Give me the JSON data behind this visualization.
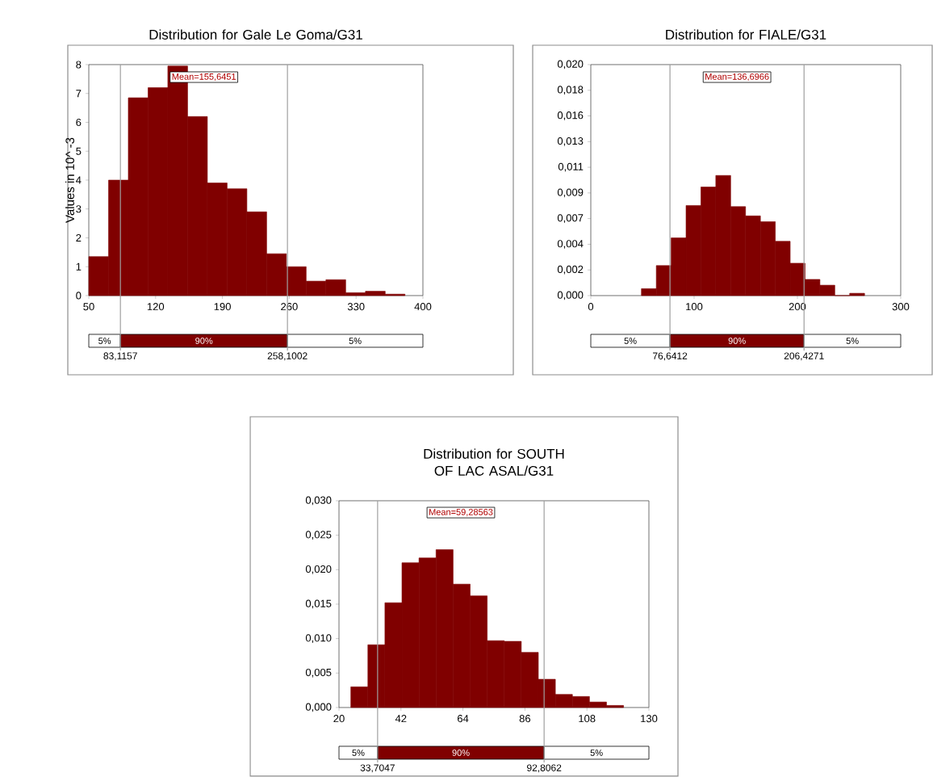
{
  "chart_data": [
    {
      "type": "histogram",
      "title": "Distribution for Gale Le Goma/G31",
      "ylabel": "Values in 10^ -3",
      "color": "#800000",
      "bins": [
        50,
        70.7,
        91.4,
        112.1,
        132.8,
        153.5,
        174.2,
        194.9,
        215.6,
        236.3,
        257,
        277.7,
        298.4,
        319.1,
        339.8,
        360.5,
        381.2
      ],
      "values": [
        1.35,
        4.0,
        6.85,
        7.2,
        7.95,
        6.2,
        3.9,
        3.7,
        2.9,
        1.45,
        1.0,
        0.5,
        0.55,
        0.1,
        0.15,
        0.05
      ],
      "xlim": [
        50,
        400
      ],
      "xticks": [
        50,
        120,
        190,
        260,
        330,
        400
      ],
      "ylim": [
        0,
        8
      ],
      "yticks": [
        0,
        1,
        2,
        3,
        4,
        5,
        6,
        7,
        8
      ],
      "ref_lines": [
        {
          "axis": "x",
          "value": 83.1157,
          "label": "83,1157",
          "color": "#a0a0a0"
        },
        {
          "axis": "x",
          "value": 258.1002,
          "label": "258,1002",
          "color": "#a0a0a0"
        }
      ],
      "annotations": [
        "Mean=155,6451",
        "5%",
        "90%",
        "5%"
      ]
    },
    {
      "type": "histogram",
      "title": "Distribution for FIALE/G31",
      "color": "#800000",
      "bins": [
        49,
        63.4,
        77.8,
        92.2,
        106.6,
        121,
        135.4,
        149.8,
        164.2,
        178.6,
        193,
        207.4,
        221.8,
        236.2,
        250.6,
        265
      ],
      "values": [
        0.0006,
        0.0026,
        0.005,
        0.0078,
        0.0094,
        0.0104,
        0.0077,
        0.0069,
        0.0064,
        0.0047,
        0.0028,
        0.0014,
        0.0009,
        0,
        0.0002
      ],
      "xlim": [
        0,
        300
      ],
      "xticks": [
        0,
        100,
        200,
        300
      ],
      "ylim": [
        0,
        0.02
      ],
      "yticks": [
        {
          "value": 0,
          "label": "0,000"
        },
        {
          "value": 0.00222,
          "label": "0,002"
        },
        {
          "value": 0.00444,
          "label": "0,004"
        },
        {
          "value": 0.00667,
          "label": "0,007"
        },
        {
          "value": 0.00889,
          "label": "0,009"
        },
        {
          "value": 0.01111,
          "label": "0,011"
        },
        {
          "value": 0.01333,
          "label": "0,013"
        },
        {
          "value": 0.01556,
          "label": "0,016"
        },
        {
          "value": 0.01778,
          "label": "0,018"
        },
        {
          "value": 0.02,
          "label": "0,020"
        }
      ],
      "ref_lines": [
        {
          "axis": "x",
          "value": 76.6412,
          "label": "76,6412",
          "color": "#a0a0a0"
        },
        {
          "axis": "x",
          "value": 206.4271,
          "label": "206,4271",
          "color": "#a0a0a0"
        }
      ],
      "annotations": [
        "Mean=136,6966",
        "5%",
        "90%",
        "5%"
      ]
    },
    {
      "type": "histogram",
      "title": "Distribution for SOUTH OF LAC ASAL/G31",
      "color": "#800000",
      "bins": [
        24.2,
        30.25,
        36.3,
        42.35,
        48.4,
        54.45,
        60.5,
        66.55,
        72.6,
        78.65,
        84.7,
        90.75,
        96.8,
        102.85,
        108.9,
        114.95,
        121
      ],
      "values": [
        0.003,
        0.0091,
        0.0152,
        0.021,
        0.0217,
        0.0229,
        0.0179,
        0.0162,
        0.0097,
        0.0096,
        0.008,
        0.0041,
        0.0019,
        0.0016,
        0.0008,
        0.0003
      ],
      "xlim": [
        20,
        130
      ],
      "xticks": [
        20,
        42,
        64,
        86,
        108,
        130
      ],
      "ylim": [
        0,
        0.03
      ],
      "yticks": [
        {
          "value": 0,
          "label": "0,000"
        },
        {
          "value": 0.005,
          "label": "0,005"
        },
        {
          "value": 0.01,
          "label": "0,010"
        },
        {
          "value": 0.015,
          "label": "0,015"
        },
        {
          "value": 0.02,
          "label": "0,020"
        },
        {
          "value": 0.025,
          "label": "0,025"
        },
        {
          "value": 0.03,
          "label": "0,030"
        }
      ],
      "ref_lines": [
        {
          "axis": "x",
          "value": 33.7047,
          "label": "33,7047",
          "color": "#a0a0a0"
        },
        {
          "axis": "x",
          "value": 92.8062,
          "label": "92,8062",
          "color": "#a0a0a0"
        }
      ],
      "annotations": [
        "Mean=59,28563",
        "5%",
        "90%",
        "5%"
      ]
    }
  ]
}
